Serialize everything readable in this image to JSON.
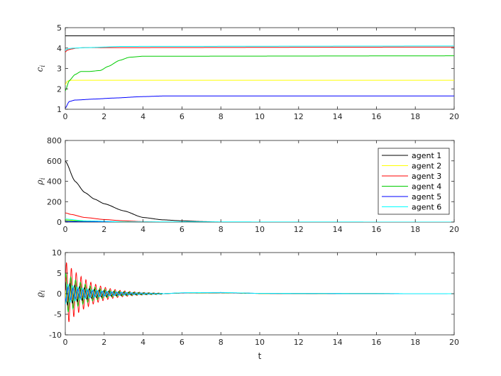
{
  "chart_data": [
    {
      "type": "line",
      "ylabel": "c_i",
      "xlabel": "",
      "xlim": [
        0,
        20
      ],
      "ylim": [
        1,
        5
      ],
      "xticks": [
        0,
        2,
        4,
        6,
        8,
        10,
        12,
        14,
        16,
        18,
        20
      ],
      "yticks": [
        1,
        2,
        3,
        4,
        5
      ],
      "series": [
        {
          "color": "#000000",
          "x": [
            0,
            20
          ],
          "values": [
            4.6,
            4.6
          ]
        },
        {
          "color": "#ffff00",
          "x": [
            0,
            0.1,
            0.3,
            20
          ],
          "values": [
            2.2,
            2.38,
            2.42,
            2.42
          ]
        },
        {
          "color": "#ff0000",
          "x": [
            0,
            0.1,
            0.3,
            0.6,
            1,
            20
          ],
          "values": [
            3.8,
            3.9,
            3.95,
            4.0,
            4.02,
            4.05
          ]
        },
        {
          "color": "#00cc00",
          "x": [
            0,
            0.2,
            0.5,
            0.8,
            1.2,
            1.8,
            2.2,
            2.8,
            3.3,
            4,
            5,
            20
          ],
          "values": [
            1.9,
            2.4,
            2.7,
            2.85,
            2.85,
            2.9,
            3.1,
            3.4,
            3.55,
            3.6,
            3.6,
            3.62
          ]
        },
        {
          "color": "#0000ff",
          "x": [
            0,
            0.2,
            0.5,
            1.5,
            2.5,
            4,
            5,
            20
          ],
          "values": [
            1.05,
            1.38,
            1.45,
            1.5,
            1.55,
            1.62,
            1.65,
            1.65
          ]
        },
        {
          "color": "#00ffff",
          "x": [
            0,
            0.2,
            0.5,
            1,
            3,
            20
          ],
          "values": [
            3.9,
            3.98,
            4.0,
            4.02,
            4.08,
            4.1
          ]
        }
      ]
    },
    {
      "type": "line",
      "ylabel": "ρ_i",
      "xlabel": "",
      "xlim": [
        0,
        20
      ],
      "ylim": [
        0,
        800
      ],
      "xticks": [
        0,
        2,
        4,
        6,
        8,
        10,
        12,
        14,
        16,
        18,
        20
      ],
      "yticks": [
        0,
        200,
        400,
        600,
        800
      ],
      "legend": {
        "position": "top-right",
        "entries": [
          "agent 1",
          "agent 2",
          "agent 3",
          "agent 4",
          "agent 5",
          "agent 6"
        ]
      },
      "series": [
        {
          "name": "agent 1",
          "color": "#000000",
          "x": [
            0,
            0.5,
            1,
            1.5,
            2,
            3,
            4,
            5,
            6,
            7,
            8,
            20
          ],
          "values": [
            600,
            400,
            290,
            225,
            180,
            110,
            45,
            22,
            12,
            5,
            0,
            0
          ]
        },
        {
          "name": "agent 2",
          "color": "#ffff00",
          "x": [
            0,
            1,
            2,
            4,
            20
          ],
          "values": [
            25,
            10,
            4,
            0,
            0
          ]
        },
        {
          "name": "agent 3",
          "color": "#ff0000",
          "x": [
            0,
            0.3,
            1,
            2,
            3,
            4,
            5,
            20
          ],
          "values": [
            90,
            75,
            45,
            25,
            12,
            4,
            0,
            0
          ]
        },
        {
          "name": "agent 4",
          "color": "#00cc00",
          "x": [
            0,
            1,
            2,
            4,
            20
          ],
          "values": [
            15,
            6,
            2,
            0,
            0
          ]
        },
        {
          "name": "agent 5",
          "color": "#0000ff",
          "x": [
            0,
            1,
            3,
            20
          ],
          "values": [
            5,
            2,
            0,
            0
          ]
        },
        {
          "name": "agent 6",
          "color": "#00ffff",
          "x": [
            0,
            1,
            3,
            20
          ],
          "values": [
            30,
            12,
            2,
            0
          ]
        }
      ]
    },
    {
      "type": "line",
      "ylabel": "ϱ_i",
      "xlabel": "t",
      "xlim": [
        0,
        20
      ],
      "ylim": [
        -10,
        10
      ],
      "xticks": [
        0,
        2,
        4,
        6,
        8,
        10,
        12,
        14,
        16,
        18,
        20
      ],
      "yticks": [
        -10,
        -5,
        0,
        5,
        10
      ],
      "oscillation": {
        "period": 0.25,
        "settle_time": 5,
        "tail_x": [
          0,
          5,
          6,
          8,
          10,
          20
        ],
        "tail_values": [
          0,
          0,
          0.15,
          0.2,
          0.05,
          0
        ]
      },
      "series": [
        {
          "color": "#ff0000",
          "amplitude": 8.0,
          "decay": 0.8
        },
        {
          "color": "#00cc00",
          "amplitude": 5.0,
          "decay": 0.75
        },
        {
          "color": "#000000",
          "amplitude": 3.0,
          "decay": 0.7
        },
        {
          "color": "#ffff00",
          "amplitude": 2.0,
          "decay": 0.7
        },
        {
          "color": "#0000ff",
          "amplitude": 2.0,
          "decay": 0.65
        },
        {
          "color": "#00ffff",
          "amplitude": 2.5,
          "decay": 0.65
        }
      ]
    }
  ]
}
